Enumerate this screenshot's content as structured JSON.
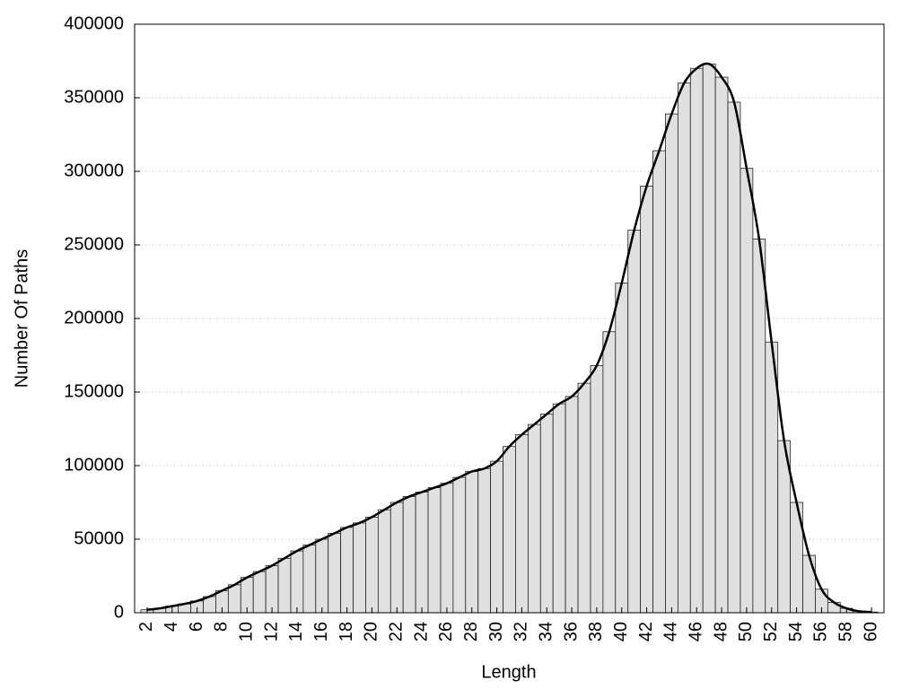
{
  "chart_data": {
    "type": "bar",
    "xlabel": "Length",
    "ylabel": "Number Of Paths",
    "x": [
      2,
      3,
      4,
      5,
      6,
      7,
      8,
      9,
      10,
      11,
      12,
      13,
      14,
      15,
      16,
      17,
      18,
      19,
      20,
      21,
      22,
      23,
      24,
      25,
      26,
      27,
      28,
      29,
      30,
      31,
      32,
      33,
      34,
      35,
      36,
      37,
      38,
      39,
      40,
      41,
      42,
      43,
      44,
      45,
      46,
      47,
      48,
      49,
      50,
      51,
      52,
      53,
      54,
      55,
      56,
      57,
      58,
      59,
      60
    ],
    "values": [
      2000,
      3000,
      4500,
      6000,
      8000,
      11000,
      15000,
      19000,
      24000,
      28000,
      32000,
      37000,
      42000,
      46000,
      50000,
      54000,
      58000,
      61000,
      65000,
      70000,
      75000,
      79000,
      82000,
      85000,
      88000,
      92000,
      96000,
      98000,
      103000,
      113000,
      121000,
      128000,
      135000,
      142000,
      147000,
      156000,
      168000,
      191000,
      224000,
      260000,
      290000,
      314000,
      339000,
      360000,
      370000,
      373000,
      364000,
      347000,
      302000,
      254000,
      184000,
      117000,
      75000,
      39000,
      16000,
      7000,
      3000,
      1000,
      500
    ],
    "color": "#e0e0e0",
    "edge_color": "#222222",
    "curve": true,
    "curve_color": "#000000",
    "xlim": [
      1,
      61
    ],
    "xticks": [
      2,
      4,
      6,
      8,
      10,
      12,
      14,
      16,
      18,
      20,
      22,
      24,
      26,
      28,
      30,
      32,
      34,
      36,
      38,
      40,
      42,
      44,
      46,
      48,
      50,
      52,
      54,
      56,
      58,
      60
    ],
    "ylim": [
      0,
      400000
    ],
    "yticks": [
      0,
      50000,
      100000,
      150000,
      200000,
      250000,
      300000,
      350000,
      400000
    ],
    "grid": true
  }
}
